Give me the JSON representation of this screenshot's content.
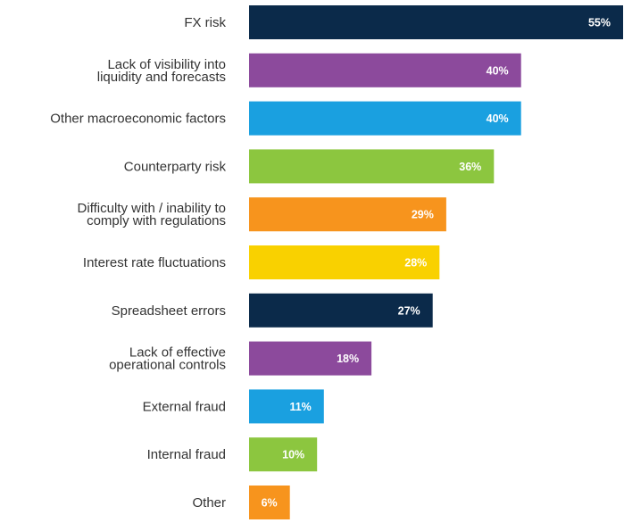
{
  "chart_data": {
    "type": "bar",
    "orientation": "horizontal",
    "categories": [
      [
        "FX risk"
      ],
      [
        "Lack of visibility into",
        "liquidity and forecasts"
      ],
      [
        "Other macroeconomic factors"
      ],
      [
        "Counterparty risk"
      ],
      [
        "Difficulty with / inability to",
        "comply with regulations"
      ],
      [
        "Interest rate fluctuations"
      ],
      [
        "Spreadsheet errors"
      ],
      [
        "Lack of effective",
        "operational controls"
      ],
      [
        "External fraud"
      ],
      [
        "Internal fraud"
      ],
      [
        "Other"
      ]
    ],
    "values": [
      55,
      40,
      40,
      36,
      29,
      28,
      27,
      18,
      11,
      10,
      6
    ],
    "value_labels": [
      "55%",
      "40%",
      "40%",
      "36%",
      "29%",
      "28%",
      "27%",
      "18%",
      "11%",
      "10%",
      "6%"
    ],
    "colors": [
      "#0b2a4a",
      "#8c4a9c",
      "#1aa0e0",
      "#8cc63f",
      "#f7941d",
      "#f9d100",
      "#0b2a4a",
      "#8c4a9c",
      "#1aa0e0",
      "#8cc63f",
      "#f7941d"
    ],
    "title": "",
    "xlabel": "",
    "ylabel": "",
    "xlim": [
      0,
      55
    ],
    "grid": false,
    "legend": "none"
  }
}
